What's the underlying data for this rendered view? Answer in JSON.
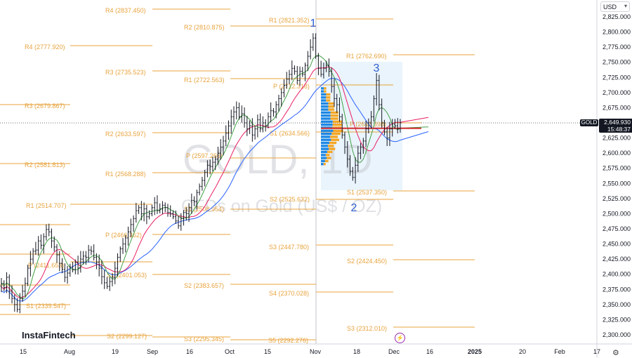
{
  "currency_select": "USD",
  "symbol_tag": "GOLD",
  "last_price": "2,649.930",
  "countdown": "15:48:37",
  "watermark": {
    "ticker": "GOLD, 1D",
    "name": "CFDs on Gold (US$ / OZ)"
  },
  "logo": "InstaFintech",
  "wave_labels": [
    "1",
    "2",
    "3"
  ],
  "y_ticks": [
    "2,825.000",
    "2,800.000",
    "2,775.000",
    "2,750.000",
    "2,725.000",
    "2,700.000",
    "2,675.000",
    "2,650.000",
    "2,625.000",
    "2,600.000",
    "2,575.000",
    "2,550.000",
    "2,525.000",
    "2,500.000",
    "2,475.000",
    "2,450.000",
    "2,425.000",
    "2,400.000",
    "2,375.000",
    "2,350.000",
    "2,325.000",
    "2,300.000"
  ],
  "x_ticks": [
    "15",
    "Aug",
    "19",
    "Sep",
    "16",
    "Oct",
    "15",
    "Nov",
    "18",
    "Dec",
    "16",
    "2025",
    "20",
    "Feb",
    "17"
  ],
  "pivot_labels": [
    "R4 (2837.450)",
    "R2 (2810.875)",
    "R1 (2821.352)",
    "R4 (2777.920)",
    "R1 (2762.690)",
    "R3 (2735.523)",
    "R1 (2722.563)",
    "P (2712.318)",
    "R3 (2679.867)",
    "S1 (2634.566)",
    "R2 (2633.597)",
    "P (2643.398)",
    "P (2597.266)",
    "R2 (2581.813)",
    "R1 (2568.288)",
    "S1 (2537.350)",
    "S2 (2525.632)",
    "R1 (2514.707)",
    "S1 (2508.954)",
    "P (2466.362)",
    "S3 (2447.780)",
    "S2 (2424.450)",
    "P (2411.653)",
    "S1 (2401.053)",
    "S2 (2383.657)",
    "S4 (2370.028)",
    "S1 (2339.547)",
    "S3 (2312.010)",
    "S2 (2299.127)",
    "S3 (2295.345)",
    "S5 (2292.276)"
  ],
  "chart_data": {
    "type": "candlestick",
    "symbol": "GOLD",
    "timeframe": "1D",
    "ylim": [
      2290,
      2832
    ],
    "last_price": 2649.93,
    "ohlc_closes": [
      2385,
      2378,
      2395,
      2372,
      2360,
      2350,
      2342,
      2360,
      2372,
      2385,
      2410,
      2425,
      2438,
      2440,
      2455,
      2448,
      2462,
      2474,
      2470,
      2455,
      2445,
      2432,
      2418,
      2408,
      2395,
      2402,
      2412,
      2408,
      2420,
      2410,
      2425,
      2430,
      2428,
      2440,
      2438,
      2428,
      2420,
      2410,
      2396,
      2386,
      2380,
      2388,
      2395,
      2410,
      2428,
      2442,
      2450,
      2460,
      2470,
      2482,
      2492,
      2505,
      2510,
      2500,
      2508,
      2495,
      2500,
      2510,
      2518,
      2505,
      2508,
      2514,
      2510,
      2502,
      2500,
      2495,
      2488,
      2480,
      2492,
      2502,
      2500,
      2510,
      2522,
      2520,
      2535,
      2545,
      2555,
      2568,
      2580,
      2578,
      2585,
      2590,
      2600,
      2610,
      2620,
      2633,
      2645,
      2660,
      2668,
      2675,
      2660,
      2665,
      2650,
      2640,
      2645,
      2630,
      2640,
      2655,
      2640,
      2650,
      2645,
      2660,
      2670,
      2668,
      2680,
      2690,
      2700,
      2712,
      2722,
      2730,
      2740,
      2735,
      2720,
      2735,
      2730,
      2745,
      2760,
      2775,
      2790,
      2760,
      2740,
      2730,
      2740,
      2745,
      2735,
      2710,
      2690,
      2680,
      2660,
      2630,
      2610,
      2590,
      2570,
      2560,
      2580,
      2600,
      2610,
      2620,
      2640,
      2650,
      2660,
      2690,
      2720,
      2680,
      2650,
      2635,
      2625,
      2640,
      2648,
      2645,
      2640,
      2650
    ],
    "moving_averages": [
      {
        "color": "#2962ff",
        "role": "slow"
      },
      {
        "color": "#e91e63",
        "role": "medium"
      },
      {
        "color": "#43a047",
        "role": "fast"
      }
    ],
    "volume_profile": {
      "poc": 2641,
      "range": [
        2580,
        2710
      ]
    },
    "wave_points": [
      {
        "label": "1",
        "price": 2790
      },
      {
        "label": "2",
        "price": 2537
      },
      {
        "label": "3",
        "price": 2720
      }
    ]
  },
  "colors": {
    "pivot": "#e8a33d",
    "up": "#131722",
    "wave": "#2d5fd1",
    "profile_up": "#1e88e5",
    "profile_down": "#f5a623",
    "poc": "#d32f2f"
  }
}
